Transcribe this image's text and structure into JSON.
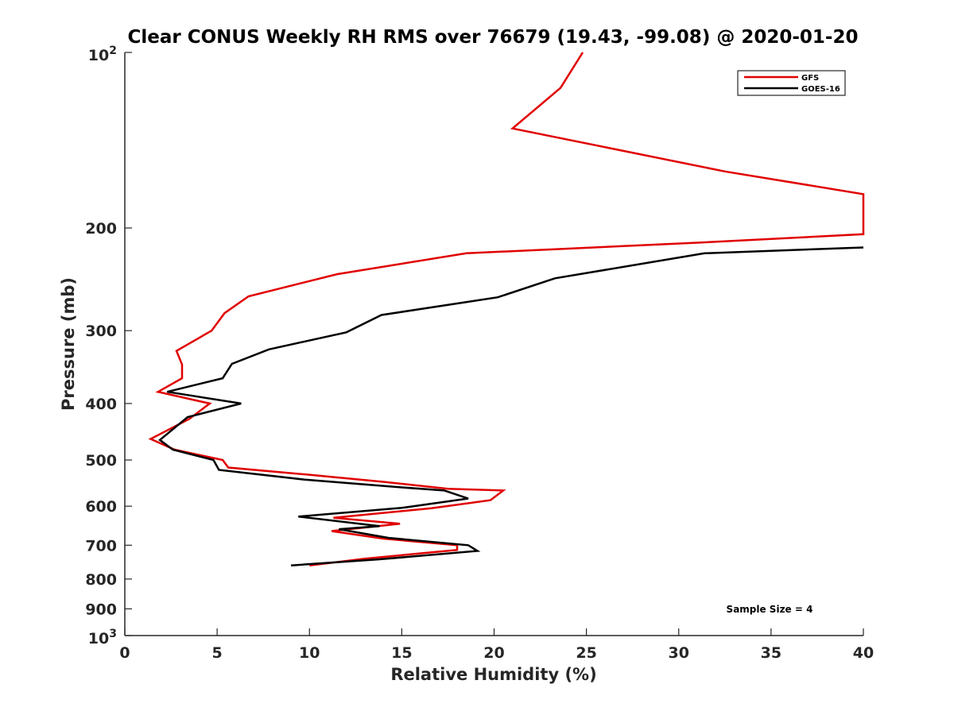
{
  "chart_data": {
    "type": "line",
    "title": "Clear CONUS Weekly RH RMS over 76679 (19.43, -99.08) @ 2020-01-20",
    "xlabel": "Relative Humidity (%)",
    "ylabel": "Pressure (mb)",
    "xlim": [
      0,
      40
    ],
    "ylim": [
      100,
      1000
    ],
    "y_scale": "log",
    "y_reversed": true,
    "grid": false,
    "legend_position": "top-right",
    "x_ticks": [
      0,
      5,
      10,
      15,
      20,
      25,
      30,
      35,
      40
    ],
    "x_tick_labels": [
      "0",
      "5",
      "10",
      "15",
      "20",
      "25",
      "30",
      "35",
      "40"
    ],
    "y_ticks": [
      200,
      300,
      400,
      500,
      600,
      700,
      800,
      900
    ],
    "y_tick_labels": [
      "200",
      "300",
      "400",
      "500",
      "600",
      "700",
      "800",
      "900"
    ],
    "y_top_label": {
      "base": "10",
      "exp": "2"
    },
    "y_bottom_label": {
      "base": "10",
      "exp": "3"
    },
    "annotation": "Sample Size = 4",
    "series": [
      {
        "name": "GFS",
        "color": "#e00000",
        "points": [
          [
            24.8,
            100
          ],
          [
            23.6,
            115
          ],
          [
            21.0,
            135
          ],
          [
            32.5,
            160
          ],
          [
            40.0,
            175
          ],
          [
            40.0,
            205
          ],
          [
            31.0,
            212
          ],
          [
            18.5,
            221
          ],
          [
            11.5,
            240
          ],
          [
            6.7,
            262
          ],
          [
            5.4,
            280
          ],
          [
            4.7,
            300
          ],
          [
            2.8,
            325
          ],
          [
            3.1,
            343
          ],
          [
            3.1,
            362
          ],
          [
            1.8,
            382
          ],
          [
            4.6,
            400
          ],
          [
            3.5,
            425
          ],
          [
            1.4,
            460
          ],
          [
            2.7,
            480
          ],
          [
            5.3,
            500
          ],
          [
            5.6,
            515
          ],
          [
            10.0,
            530
          ],
          [
            14.0,
            545
          ],
          [
            17.5,
            560
          ],
          [
            20.5,
            564
          ],
          [
            19.8,
            586
          ],
          [
            16.6,
            605
          ],
          [
            11.3,
            628
          ],
          [
            14.9,
            643
          ],
          [
            11.2,
            662
          ],
          [
            14.0,
            682
          ],
          [
            18.0,
            700
          ],
          [
            18.0,
            713
          ],
          [
            13.0,
            738
          ],
          [
            10.0,
            758
          ]
        ]
      },
      {
        "name": "GOES-16",
        "color": "#000000",
        "points": [
          [
            40.0,
            216
          ],
          [
            31.4,
            221
          ],
          [
            23.3,
            244
          ],
          [
            20.2,
            263
          ],
          [
            13.9,
            282
          ],
          [
            12.0,
            302
          ],
          [
            7.8,
            323
          ],
          [
            5.8,
            342
          ],
          [
            5.3,
            362
          ],
          [
            2.3,
            382
          ],
          [
            6.3,
            400
          ],
          [
            3.4,
            422
          ],
          [
            1.9,
            462
          ],
          [
            2.6,
            480
          ],
          [
            4.8,
            500
          ],
          [
            5.1,
            520
          ],
          [
            9.7,
            540
          ],
          [
            15.0,
            557
          ],
          [
            17.3,
            564
          ],
          [
            18.6,
            582
          ],
          [
            15.0,
            604
          ],
          [
            9.4,
            625
          ],
          [
            13.8,
            649
          ],
          [
            11.6,
            657
          ],
          [
            14.3,
            680
          ],
          [
            18.6,
            700
          ],
          [
            19.1,
            716
          ],
          [
            13.8,
            740
          ],
          [
            9.0,
            758
          ]
        ]
      }
    ]
  }
}
